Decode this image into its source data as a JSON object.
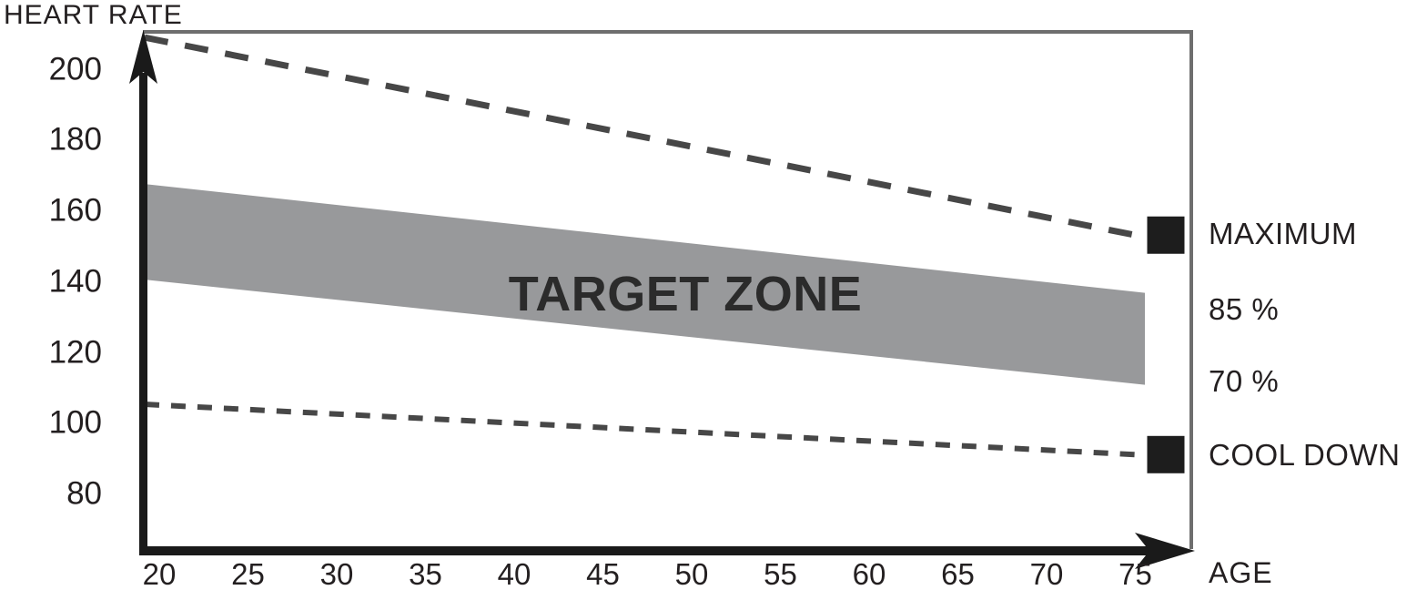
{
  "chart_data": {
    "type": "line",
    "title": "",
    "ylabel": "HEART RATE",
    "xlabel": "AGE",
    "y_ticks": [
      200,
      180,
      160,
      140,
      120,
      100,
      80
    ],
    "x_ticks": [
      20,
      25,
      30,
      35,
      40,
      45,
      50,
      55,
      60,
      65,
      70,
      75
    ],
    "ylim": [
      64,
      211
    ],
    "xlim": [
      19,
      77
    ],
    "grid": false,
    "legend_position": "right",
    "band_label": "TARGET ZONE",
    "series": [
      {
        "name": "maximum",
        "label": "MAXIMUM",
        "style": "dashed",
        "marker": "black-square",
        "x": [
          20,
          75
        ],
        "y": [
          208,
          153
        ]
      },
      {
        "name": "85-percent",
        "label": "85 %",
        "style": "band-upper",
        "marker": "none",
        "x": [
          20,
          75
        ],
        "y": [
          167,
          137
        ]
      },
      {
        "name": "70-percent",
        "label": "70 %",
        "style": "band-lower",
        "marker": "none",
        "x": [
          20,
          75
        ],
        "y": [
          140,
          111
        ]
      },
      {
        "name": "cool-down",
        "label": "COOL DOWN",
        "style": "dashed",
        "marker": "black-square",
        "x": [
          20,
          75
        ],
        "y": [
          105,
          91
        ]
      }
    ]
  },
  "colors": {
    "band": "#98999b",
    "dashed_line": "#474747",
    "marker": "#1d1d1d",
    "axis": "#1a1a1a",
    "frame": "#6e6e6e",
    "text": "#231f20",
    "zone_text": "#2b2b2b"
  }
}
